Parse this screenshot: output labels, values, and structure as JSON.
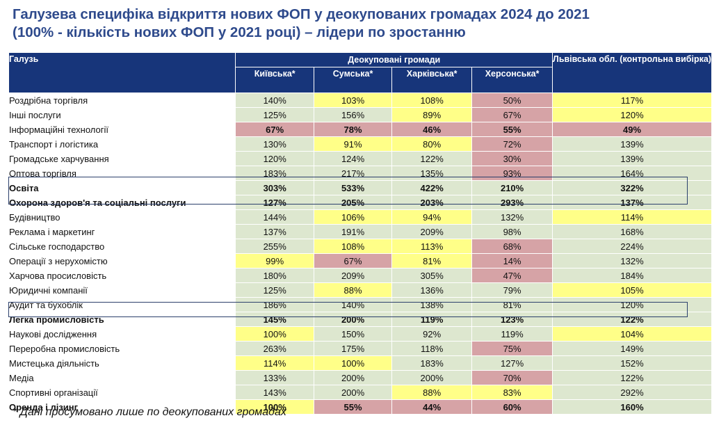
{
  "title_line1": "Галузева специфіка відкриття нових ФОП  у деокупованих громадах 2024 до 2021",
  "title_line2": "(100% - кількість нових ФОП у 2021 році) – лідери по зростанню",
  "table": {
    "header_industry": "Галузь",
    "header_group": "Деокуповані громади",
    "header_lviv": "Львівська обл. (контрольна вибірка)",
    "regions": [
      "Київська*",
      "Сумська*",
      "Харківська*",
      "Херсонська*"
    ],
    "rows": [
      {
        "name": "Роздрібна торгівля",
        "values": [
          "140%",
          "103%",
          "108%",
          "50%",
          "117%"
        ],
        "colors": [
          "g",
          "y",
          "y",
          "r",
          "y"
        ],
        "bold": false
      },
      {
        "name": "Інші послуги",
        "values": [
          "125%",
          "156%",
          "89%",
          "67%",
          "120%"
        ],
        "colors": [
          "g",
          "g",
          "y",
          "r",
          "y"
        ],
        "bold": false
      },
      {
        "name": "Інформаційні технології",
        "values": [
          "67%",
          "78%",
          "46%",
          "55%",
          "49%"
        ],
        "colors": [
          "r",
          "r",
          "r",
          "r",
          "r"
        ],
        "bold": false,
        "values_bold": true
      },
      {
        "name": "Транспорт і логістика",
        "values": [
          "130%",
          "91%",
          "80%",
          "72%",
          "139%"
        ],
        "colors": [
          "g",
          "y",
          "y",
          "r",
          "g"
        ],
        "bold": false
      },
      {
        "name": "Громадське харчування",
        "values": [
          "120%",
          "124%",
          "122%",
          "30%",
          "139%"
        ],
        "colors": [
          "g",
          "g",
          "g",
          "r",
          "g"
        ],
        "bold": false
      },
      {
        "name": "Оптова торгівля",
        "values": [
          "183%",
          "217%",
          "135%",
          "93%",
          "164%"
        ],
        "colors": [
          "g",
          "g",
          "g",
          "r",
          "g"
        ],
        "bold": false
      },
      {
        "name": "Освіта",
        "values": [
          "303%",
          "533%",
          "422%",
          "210%",
          "322%"
        ],
        "colors": [
          "g",
          "g",
          "g",
          "g",
          "g"
        ],
        "bold": true
      },
      {
        "name": "Охорона здоров'я та соціальні послуги",
        "values": [
          "127%",
          "205%",
          "203%",
          "293%",
          "137%"
        ],
        "colors": [
          "g",
          "g",
          "g",
          "g",
          "g"
        ],
        "bold": true
      },
      {
        "name": "Будівництво",
        "values": [
          "144%",
          "106%",
          "94%",
          "132%",
          "114%"
        ],
        "colors": [
          "g",
          "y",
          "y",
          "g",
          "y"
        ],
        "bold": false
      },
      {
        "name": "Реклама і маркетинг",
        "values": [
          "137%",
          "191%",
          "209%",
          "98%",
          "168%"
        ],
        "colors": [
          "g",
          "g",
          "g",
          "g",
          "g"
        ],
        "bold": false
      },
      {
        "name": "Сільське господарство",
        "values": [
          "255%",
          "108%",
          "113%",
          "68%",
          "224%"
        ],
        "colors": [
          "g",
          "y",
          "y",
          "r",
          "g"
        ],
        "bold": false
      },
      {
        "name": "Операції з нерухомістю",
        "values": [
          "99%",
          "67%",
          "81%",
          "14%",
          "132%"
        ],
        "colors": [
          "y",
          "r",
          "y",
          "r",
          "g"
        ],
        "bold": false
      },
      {
        "name": "Харчова просисловість",
        "values": [
          "180%",
          "209%",
          "305%",
          "47%",
          "184%"
        ],
        "colors": [
          "g",
          "g",
          "g",
          "r",
          "g"
        ],
        "bold": false
      },
      {
        "name": "Юридичні компанії",
        "values": [
          "125%",
          "88%",
          "136%",
          "79%",
          "105%"
        ],
        "colors": [
          "g",
          "y",
          "g",
          "g",
          "y"
        ],
        "bold": false
      },
      {
        "name": "Аудит та бухоблік",
        "values": [
          "186%",
          "140%",
          "138%",
          "81%",
          "120%"
        ],
        "colors": [
          "g",
          "g",
          "g",
          "g",
          "g"
        ],
        "bold": false
      },
      {
        "name": "Легка промисловість",
        "values": [
          "145%",
          "200%",
          "119%",
          "123%",
          "122%"
        ],
        "colors": [
          "g",
          "g",
          "g",
          "g",
          "g"
        ],
        "bold": true
      },
      {
        "name": "Наукові дослідження",
        "values": [
          "100%",
          "150%",
          "92%",
          "119%",
          "104%"
        ],
        "colors": [
          "y",
          "g",
          "g",
          "g",
          "y"
        ],
        "bold": false
      },
      {
        "name": "Переробна промисловість",
        "values": [
          "263%",
          "175%",
          "118%",
          "75%",
          "149%"
        ],
        "colors": [
          "g",
          "g",
          "g",
          "r",
          "g"
        ],
        "bold": false
      },
      {
        "name": "Мистецька діяльність",
        "values": [
          "114%",
          "100%",
          "183%",
          "127%",
          "152%"
        ],
        "colors": [
          "y",
          "y",
          "g",
          "g",
          "g"
        ],
        "bold": false
      },
      {
        "name": "Медіа",
        "values": [
          "133%",
          "200%",
          "200%",
          "70%",
          "122%"
        ],
        "colors": [
          "g",
          "g",
          "g",
          "r",
          "g"
        ],
        "bold": false
      },
      {
        "name": "Спортивні організації",
        "values": [
          "143%",
          "200%",
          "88%",
          "83%",
          "292%"
        ],
        "colors": [
          "g",
          "g",
          "y",
          "y",
          "g"
        ],
        "bold": false
      },
      {
        "name": "Оренда і лізинг",
        "values": [
          "100%",
          "55%",
          "44%",
          "60%",
          "160%"
        ],
        "colors": [
          "y",
          "r",
          "r",
          "r",
          "g"
        ],
        "bold": true
      }
    ]
  },
  "footnote": "* Дані просумовано лише по деокупованих громадах"
}
